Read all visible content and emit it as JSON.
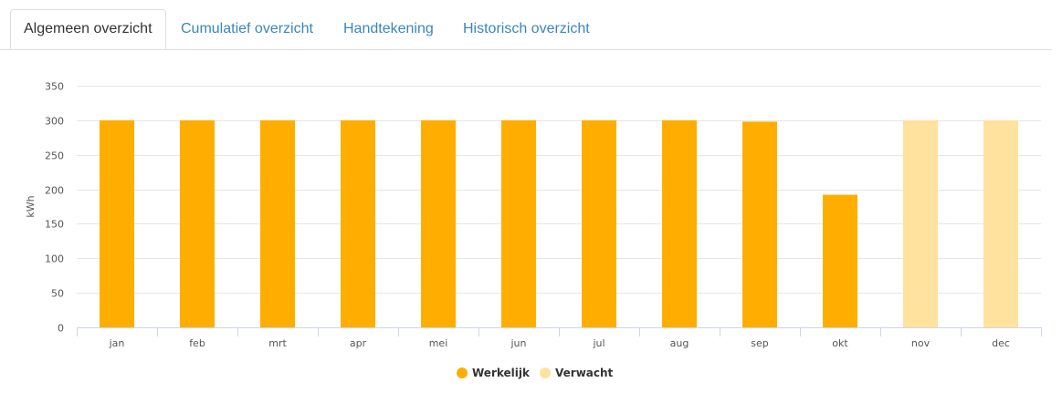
{
  "tabs": [
    {
      "label": "Algemeen overzicht",
      "active": true
    },
    {
      "label": "Cumulatief overzicht",
      "active": false
    },
    {
      "label": "Handtekening",
      "active": false
    },
    {
      "label": "Historisch overzicht",
      "active": false
    }
  ],
  "colors": {
    "actual": "#FFAE00",
    "expected": "#FFE29E",
    "grid": "#E6E6E6",
    "axis": "#CCD6EB",
    "tab_link": "#3A87B8"
  },
  "chart_data": {
    "type": "bar",
    "ylabel": "kWh",
    "ylim": [
      0,
      350
    ],
    "yticks": [
      0,
      50,
      100,
      150,
      200,
      250,
      300,
      350
    ],
    "grid": true,
    "legend_position": "bottom-center",
    "categories": [
      "jan",
      "feb",
      "mrt",
      "apr",
      "mei",
      "jun",
      "jul",
      "aug",
      "sep",
      "okt",
      "nov",
      "dec"
    ],
    "series": [
      {
        "name": "Werkelijk",
        "color": "#FFAE00",
        "values": [
          300,
          300,
          300,
          300,
          300,
          300,
          300,
          300,
          298,
          192,
          null,
          null
        ]
      },
      {
        "name": "Verwacht",
        "color": "#FFE29E",
        "values": [
          null,
          null,
          null,
          null,
          null,
          null,
          null,
          null,
          null,
          null,
          300,
          300
        ]
      }
    ]
  }
}
